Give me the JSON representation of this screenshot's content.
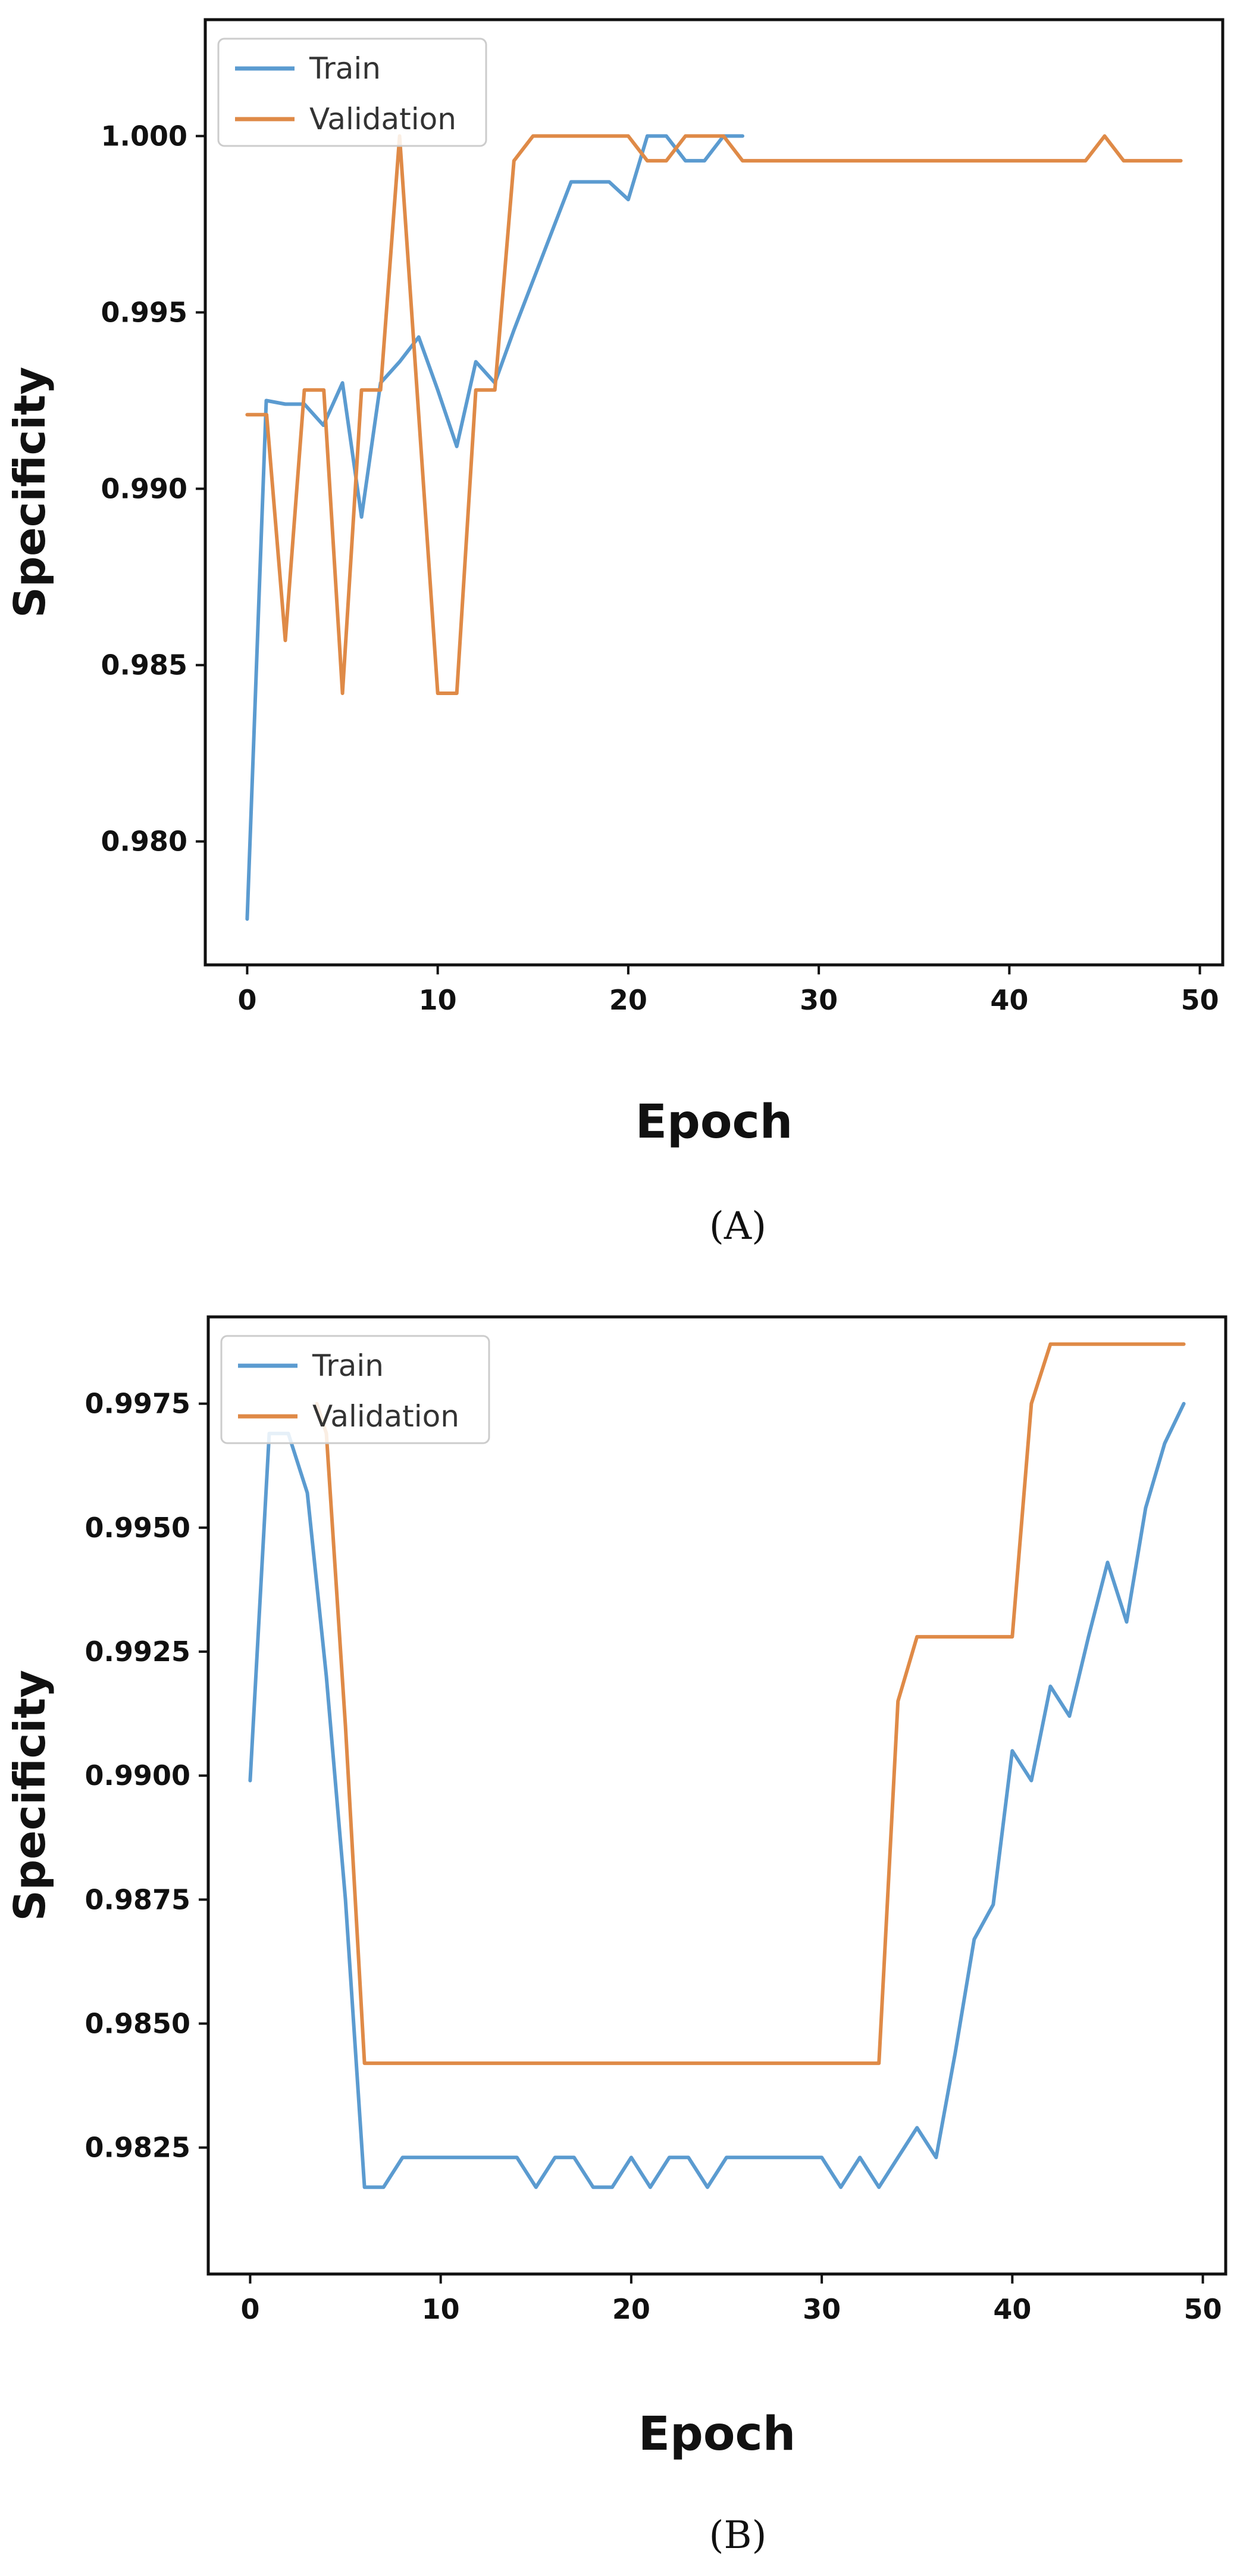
{
  "colors": {
    "train": "#5b9bd0",
    "validation": "#df8a47",
    "frame": "#111111"
  },
  "chart_data": [
    {
      "type": "line",
      "caption": "(A)",
      "xlabel": "Epoch",
      "ylabel": "Specificity",
      "xlim": [
        -2.2,
        51.2
      ],
      "ylim": [
        0.9765,
        1.0033
      ],
      "xticks": [
        0,
        10,
        20,
        30,
        40,
        50
      ],
      "xtick_labels": [
        "0",
        "10",
        "20",
        "30",
        "40",
        "50"
      ],
      "yticks": [
        0.98,
        0.985,
        0.99,
        0.995,
        1.0
      ],
      "ytick_labels": [
        "0.980",
        "0.985",
        "0.990",
        "0.995",
        "1.000"
      ],
      "grid": false,
      "legend": "top-left",
      "series": [
        {
          "name": "Train",
          "x": [
            0,
            1,
            2,
            3,
            4,
            5,
            6,
            7,
            8,
            9,
            10,
            11,
            12,
            13,
            14,
            15,
            16,
            17,
            18,
            19,
            20,
            21,
            22,
            23,
            24,
            25,
            26
          ],
          "y": [
            0.9778,
            0.9925,
            0.9924,
            0.9924,
            0.9918,
            0.993,
            0.9892,
            0.993,
            0.9936,
            0.9943,
            0.9928,
            0.9912,
            0.9936,
            0.993,
            0.9945,
            0.9959,
            0.9973,
            0.9987,
            0.9987,
            0.9987,
            0.9982,
            1.0,
            1.0,
            0.9993,
            0.9993,
            1.0,
            1.0
          ]
        },
        {
          "name": "Validation",
          "x": [
            0,
            1,
            1.02,
            2,
            3,
            4,
            4.02,
            5,
            6,
            7,
            8,
            9,
            10,
            11,
            12,
            13,
            14,
            15,
            16,
            17,
            18,
            19,
            20,
            21,
            22,
            23,
            24,
            25,
            26,
            27,
            28,
            29,
            30,
            31,
            32,
            33,
            34,
            35,
            36,
            37,
            38,
            39,
            40,
            41,
            42,
            43,
            44,
            45,
            46,
            47,
            48,
            49
          ],
          "y": [
            0.9921,
            0.9921,
            0.9921,
            0.9857,
            0.9928,
            0.9928,
            0.9928,
            0.9842,
            0.9928,
            0.9928,
            1.0,
            0.9921,
            0.9842,
            0.9842,
            0.9928,
            0.9928,
            0.9993,
            1.0,
            1.0,
            1.0,
            1.0,
            1.0,
            1.0,
            0.9993,
            0.9993,
            1.0,
            1.0,
            1.0,
            0.9993,
            0.9993,
            0.9993,
            0.9993,
            0.9993,
            0.9993,
            0.9993,
            0.9993,
            0.9993,
            0.9993,
            0.9993,
            0.9993,
            0.9993,
            0.9993,
            0.9993,
            0.9993,
            0.9993,
            0.9993,
            0.9993,
            1.0,
            0.9993,
            0.9993,
            0.9993,
            0.9993
          ]
        }
      ]
    },
    {
      "type": "line",
      "caption": "(B)",
      "xlabel": "Epoch",
      "ylabel": "Specificity",
      "xlim": [
        -2.2,
        51.2
      ],
      "ylim": [
        0.97995,
        0.99925
      ],
      "xticks": [
        0,
        10,
        20,
        30,
        40,
        50
      ],
      "xtick_labels": [
        "0",
        "10",
        "20",
        "30",
        "40",
        "50"
      ],
      "yticks": [
        0.9825,
        0.985,
        0.9875,
        0.99,
        0.9925,
        0.995,
        0.9975
      ],
      "ytick_labels": [
        "0.9825",
        "0.9850",
        "0.9875",
        "0.9900",
        "0.9925",
        "0.9950",
        "0.9975"
      ],
      "grid": false,
      "legend": "top-left",
      "series": [
        {
          "name": "Train",
          "x": [
            0,
            1,
            2,
            3,
            4,
            5,
            6,
            7,
            8,
            9,
            10,
            11,
            12,
            13,
            14,
            15,
            16,
            17,
            18,
            19,
            20,
            21,
            22,
            23,
            24,
            25,
            26,
            27,
            28,
            29,
            30,
            31,
            32,
            33,
            34,
            35,
            36,
            37,
            38,
            39,
            40,
            41,
            42,
            43,
            44,
            45,
            46,
            47,
            48,
            49
          ],
          "y": [
            0.9899,
            0.9969,
            0.9969,
            0.9957,
            0.992,
            0.9875,
            0.9817,
            0.9817,
            0.9823,
            0.9823,
            0.9823,
            0.9823,
            0.9823,
            0.9823,
            0.9823,
            0.9817,
            0.9823,
            0.9823,
            0.9817,
            0.9817,
            0.9823,
            0.9817,
            0.9823,
            0.9823,
            0.9817,
            0.9823,
            0.9823,
            0.9823,
            0.9823,
            0.9823,
            0.9823,
            0.9817,
            0.9823,
            0.9817,
            0.9823,
            0.9829,
            0.9823,
            0.9844,
            0.9867,
            0.9874,
            0.9905,
            0.9899,
            0.9918,
            0.9912,
            0.9928,
            0.9943,
            0.9931,
            0.9954,
            0.9967,
            0.9975
          ]
        },
        {
          "name": "Validation",
          "x": [
            3.5,
            4,
            5,
            6,
            7,
            8,
            9,
            10,
            11,
            12,
            13,
            14,
            15,
            16,
            17,
            18,
            19,
            20,
            21,
            22,
            23,
            24,
            25,
            26,
            27,
            28,
            29,
            30,
            31,
            32,
            33,
            34,
            35,
            36,
            37,
            38,
            39,
            40,
            41,
            42,
            43,
            44,
            45,
            46,
            47,
            48,
            49
          ],
          "y": [
            0.9975,
            0.9969,
            0.991,
            0.9842,
            0.9842,
            0.9842,
            0.9842,
            0.9842,
            0.9842,
            0.9842,
            0.9842,
            0.9842,
            0.9842,
            0.9842,
            0.9842,
            0.9842,
            0.9842,
            0.9842,
            0.9842,
            0.9842,
            0.9842,
            0.9842,
            0.9842,
            0.9842,
            0.9842,
            0.9842,
            0.9842,
            0.9842,
            0.9842,
            0.9842,
            0.9842,
            0.9915,
            0.9928,
            0.9928,
            0.9928,
            0.9928,
            0.9928,
            0.9928,
            0.9975,
            0.9987,
            0.9987,
            0.9987,
            0.9987,
            0.9987,
            0.9987,
            0.9987,
            0.9987
          ]
        }
      ]
    }
  ]
}
